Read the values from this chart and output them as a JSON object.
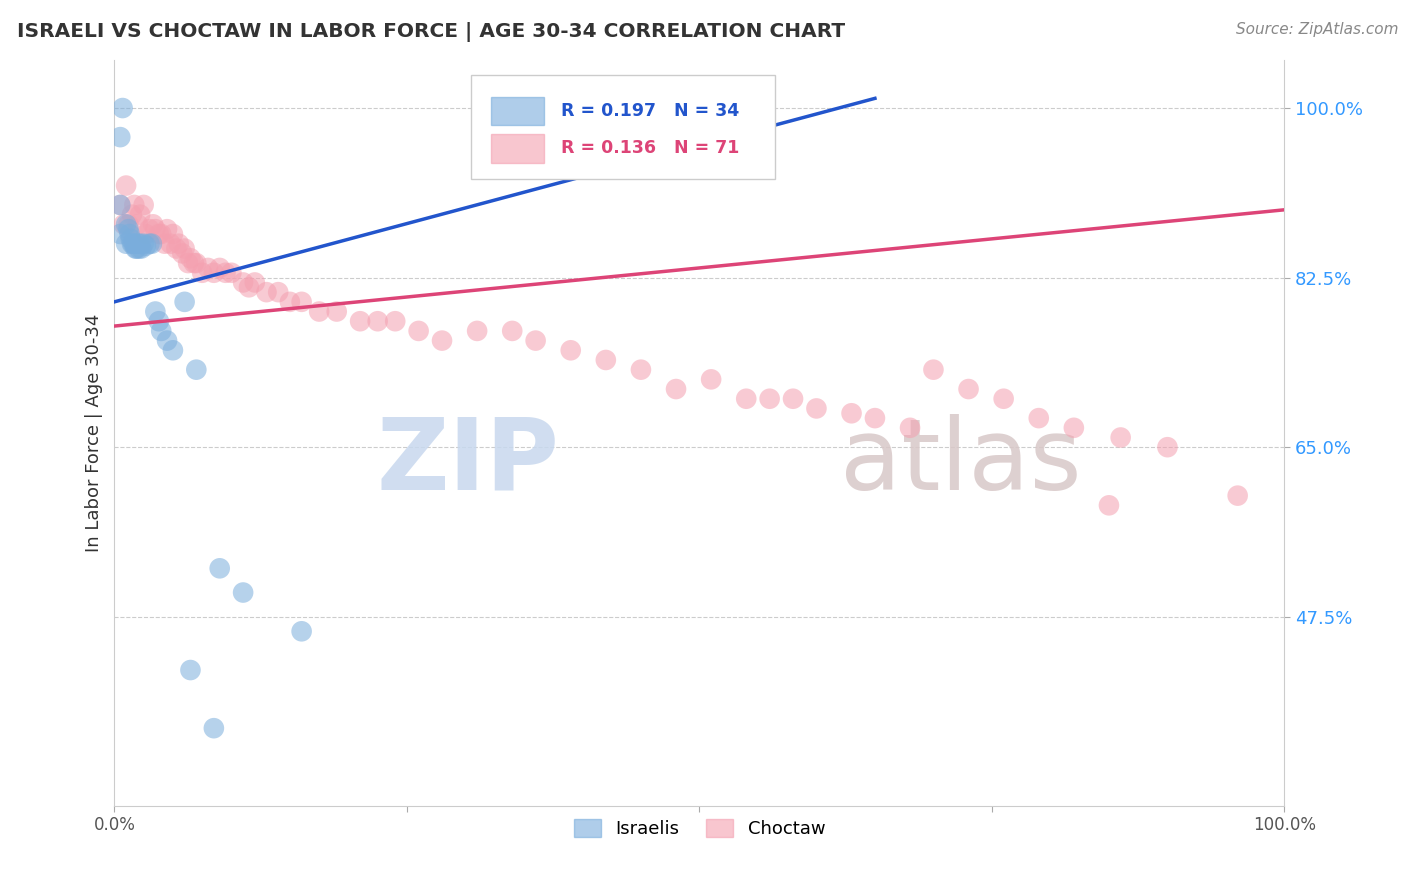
{
  "title": "ISRAELI VS CHOCTAW IN LABOR FORCE | AGE 30-34 CORRELATION CHART",
  "source_text": "Source: ZipAtlas.com",
  "ylabel": "In Labor Force | Age 30-34",
  "xlim": [
    0.0,
    1.0
  ],
  "ylim": [
    0.28,
    1.05
  ],
  "yticks": [
    0.475,
    0.65,
    0.825,
    1.0
  ],
  "ytick_labels": [
    "47.5%",
    "65.0%",
    "82.5%",
    "100.0%"
  ],
  "xticks": [
    0.0,
    0.25,
    0.5,
    0.75,
    1.0
  ],
  "xtick_labels": [
    "0.0%",
    "",
    "",
    "",
    "100.0%"
  ],
  "israeli_R": 0.197,
  "israeli_N": 34,
  "choctaw_R": 0.136,
  "choctaw_N": 71,
  "israeli_color": "#7aaddc",
  "choctaw_color": "#f4a0b0",
  "trendline_blue": "#2255cc",
  "trendline_pink": "#dd4477",
  "watermark_zip": "ZIP",
  "watermark_atlas": "atlas",
  "background_color": "#ffffff",
  "legend_R_color_blue": "#2255cc",
  "legend_R_color_pink": "#dd4477",
  "israeli_x": [
    0.005,
    0.005,
    0.005,
    0.007,
    0.01,
    0.01,
    0.012,
    0.013,
    0.014,
    0.015,
    0.016,
    0.017,
    0.018,
    0.019,
    0.02,
    0.021,
    0.022,
    0.023,
    0.025,
    0.027,
    0.03,
    0.032,
    0.035,
    0.038,
    0.04,
    0.045,
    0.05,
    0.06,
    0.07,
    0.09,
    0.11,
    0.16,
    0.065,
    0.085
  ],
  "israeli_y": [
    0.97,
    0.9,
    0.87,
    1.0,
    0.88,
    0.86,
    0.875,
    0.87,
    0.865,
    0.86,
    0.86,
    0.86,
    0.855,
    0.855,
    0.86,
    0.855,
    0.86,
    0.855,
    0.86,
    0.858,
    0.86,
    0.86,
    0.79,
    0.78,
    0.77,
    0.76,
    0.75,
    0.8,
    0.73,
    0.525,
    0.5,
    0.46,
    0.42,
    0.36
  ],
  "choctaw_x": [
    0.005,
    0.008,
    0.01,
    0.012,
    0.015,
    0.017,
    0.02,
    0.022,
    0.025,
    0.027,
    0.03,
    0.033,
    0.035,
    0.038,
    0.04,
    0.043,
    0.045,
    0.048,
    0.05,
    0.053,
    0.055,
    0.058,
    0.06,
    0.063,
    0.065,
    0.068,
    0.07,
    0.075,
    0.08,
    0.085,
    0.09,
    0.095,
    0.1,
    0.11,
    0.115,
    0.12,
    0.13,
    0.14,
    0.15,
    0.16,
    0.175,
    0.19,
    0.21,
    0.225,
    0.24,
    0.26,
    0.28,
    0.31,
    0.34,
    0.36,
    0.39,
    0.42,
    0.45,
    0.48,
    0.51,
    0.54,
    0.56,
    0.58,
    0.6,
    0.63,
    0.65,
    0.68,
    0.7,
    0.73,
    0.76,
    0.79,
    0.82,
    0.86,
    0.9,
    0.85,
    0.96
  ],
  "choctaw_y": [
    0.9,
    0.88,
    0.92,
    0.88,
    0.89,
    0.9,
    0.88,
    0.89,
    0.9,
    0.87,
    0.875,
    0.88,
    0.875,
    0.87,
    0.87,
    0.86,
    0.875,
    0.86,
    0.87,
    0.855,
    0.86,
    0.85,
    0.855,
    0.84,
    0.845,
    0.84,
    0.84,
    0.83,
    0.835,
    0.83,
    0.835,
    0.83,
    0.83,
    0.82,
    0.815,
    0.82,
    0.81,
    0.81,
    0.8,
    0.8,
    0.79,
    0.79,
    0.78,
    0.78,
    0.78,
    0.77,
    0.76,
    0.77,
    0.77,
    0.76,
    0.75,
    0.74,
    0.73,
    0.71,
    0.72,
    0.7,
    0.7,
    0.7,
    0.69,
    0.685,
    0.68,
    0.67,
    0.73,
    0.71,
    0.7,
    0.68,
    0.67,
    0.66,
    0.65,
    0.59,
    0.6
  ],
  "blue_line_x0": 0.0,
  "blue_line_y0": 0.8,
  "blue_line_x1": 0.65,
  "blue_line_y1": 1.01,
  "pink_line_x0": 0.0,
  "pink_line_y0": 0.775,
  "pink_line_x1": 1.0,
  "pink_line_y1": 0.895
}
